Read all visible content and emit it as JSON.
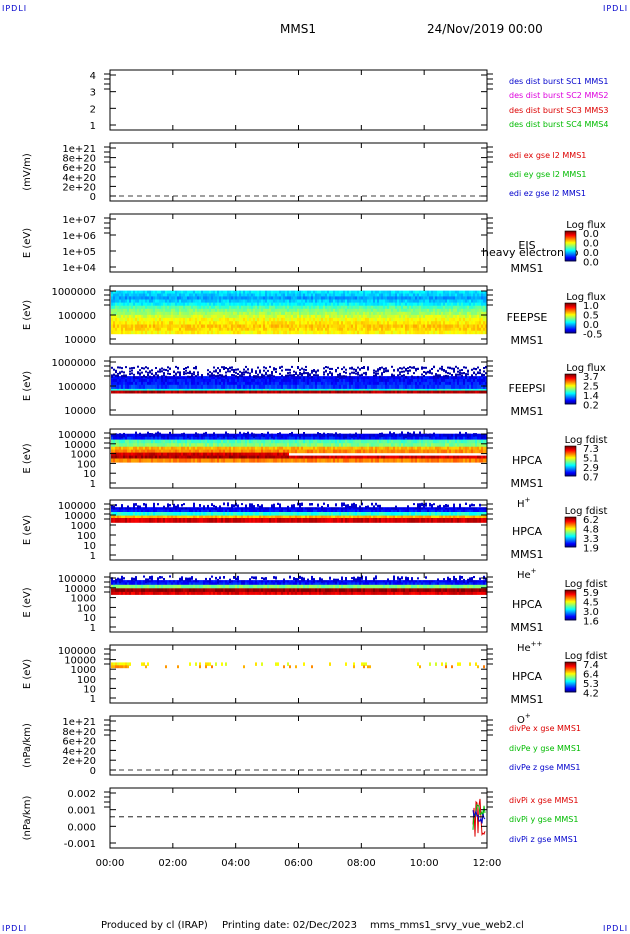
{
  "header": {
    "corner_label_tl": "IPDLI",
    "corner_label_tr": "IPDLI",
    "corner_label_bl": "IPDLI",
    "corner_label_br": "IPDLI",
    "spacecraft": "MMS1",
    "date": "24/Nov/2019 00:00"
  },
  "footer": {
    "produced_by": "Produced by cl (IRAP)",
    "printing_date": "Printing date: 02/Dec/2023",
    "script_name": "mms_mms1_srvy_vue_web2.cl"
  },
  "colors": {
    "blue": "#0000cc",
    "magenta": "#dd00dd",
    "red": "#dd0000",
    "green": "#00bb00"
  },
  "chart_data": {
    "type": "heatmap",
    "x_tick_labels": [
      "00:00",
      "02:00",
      "04:00",
      "06:00",
      "08:00",
      "10:00",
      "12:00"
    ],
    "panels": [
      {
        "id": "dist",
        "ylabel": "",
        "yticks": [
          "4",
          "3",
          "2",
          "1"
        ],
        "legend": [
          {
            "text": "des dist burst SC1 MMS1",
            "color": "#0000cc"
          },
          {
            "text": "des dist burst SC2 MMS2",
            "color": "#dd00dd"
          },
          {
            "text": "des dist burst SC3 MMS3",
            "color": "#dd0000"
          },
          {
            "text": "des dist burst SC4 MMS4",
            "color": "#00bb00"
          }
        ]
      },
      {
        "id": "edi",
        "ylabel": "(mV/m)",
        "yticks": [
          "1e+21",
          "8e+20",
          "6e+20",
          "4e+20",
          "2e+20",
          "0"
        ],
        "legend": [
          {
            "text": "edi ex gse l2 MMS1",
            "color": "#dd0000"
          },
          {
            "text": "edi ey gse l2 MMS1",
            "color": "#00bb00"
          },
          {
            "text": "edi ez gse l2 MMS1",
            "color": "#0000cc"
          }
        ]
      },
      {
        "id": "eis",
        "ylabel": "E (eV)",
        "yticks": [
          "1e+07",
          "1e+06",
          "1e+05",
          "1e+04"
        ],
        "instrument": "EIS",
        "spacecraft": "MMS1",
        "overlay_text": "heavy electron to",
        "cbar_title": "Log flux",
        "cbar_ticks": [
          "0.0",
          "0.0",
          "0.0",
          "0.0"
        ]
      },
      {
        "id": "feepse",
        "ylabel": "E (eV)",
        "yticks": [
          "1000000",
          "100000",
          "10000"
        ],
        "instrument": "FEEPSE",
        "spacecraft": "MMS1",
        "cbar_title": "Log flux",
        "cbar_ticks": [
          "1.0",
          "0.5",
          "0.0",
          "-0.5"
        ]
      },
      {
        "id": "feepsi",
        "ylabel": "E (eV)",
        "yticks": [
          "1000000",
          "100000",
          "10000"
        ],
        "instrument": "FEEPSI",
        "spacecraft": "MMS1",
        "cbar_title": "Log flux",
        "cbar_ticks": [
          "3.7",
          "2.5",
          "1.4",
          "0.2"
        ]
      },
      {
        "id": "hpca_h",
        "ylabel": "E (eV)",
        "yticks": [
          "100000",
          "10000",
          "1000",
          "100",
          "10",
          "1"
        ],
        "instrument": "HPCA",
        "spacecraft": "MMS1",
        "species": "H",
        "species_sup": "+",
        "cbar_title": "Log fdist",
        "cbar_ticks": [
          "7.3",
          "5.1",
          "2.9",
          "0.7"
        ]
      },
      {
        "id": "hpca_he",
        "ylabel": "E (eV)",
        "yticks": [
          "100000",
          "10000",
          "1000",
          "100",
          "10",
          "1"
        ],
        "instrument": "HPCA",
        "spacecraft": "MMS1",
        "species": "He",
        "species_sup": "+",
        "cbar_title": "Log fdist",
        "cbar_ticks": [
          "6.2",
          "4.8",
          "3.3",
          "1.9"
        ]
      },
      {
        "id": "hpca_hepp",
        "ylabel": "E (eV)",
        "yticks": [
          "100000",
          "10000",
          "1000",
          "100",
          "10",
          "1"
        ],
        "instrument": "HPCA",
        "spacecraft": "MMS1",
        "species": "He",
        "species_sup": "++",
        "cbar_title": "Log fdist",
        "cbar_ticks": [
          "5.9",
          "4.5",
          "3.0",
          "1.6"
        ]
      },
      {
        "id": "hpca_o",
        "ylabel": "E (eV)",
        "yticks": [
          "100000",
          "10000",
          "1000",
          "100",
          "10",
          "1"
        ],
        "instrument": "HPCA",
        "spacecraft": "MMS1",
        "species": "O",
        "species_sup": "+",
        "cbar_title": "Log fdist",
        "cbar_ticks": [
          "7.4",
          "6.4",
          "5.3",
          "4.2"
        ]
      },
      {
        "id": "divpe",
        "ylabel": "(nPa/km)",
        "yticks": [
          "1e+21",
          "8e+20",
          "6e+20",
          "4e+20",
          "2e+20",
          "0"
        ],
        "legend": [
          {
            "text": "divPe x gse MMS1",
            "color": "#dd0000"
          },
          {
            "text": "divPe y gse MMS1",
            "color": "#00bb00"
          },
          {
            "text": "divPe z gse MMS1",
            "color": "#0000cc"
          }
        ]
      },
      {
        "id": "divpi",
        "ylabel": "(nPa/km)",
        "yticks": [
          "0.002",
          "0.001",
          "0.000",
          "-0.001"
        ],
        "legend": [
          {
            "text": "divPi x gse MMS1",
            "color": "#dd0000"
          },
          {
            "text": "divPi y gse MMS1",
            "color": "#00bb00"
          },
          {
            "text": "divPi z gse MMS1",
            "color": "#0000cc"
          }
        ]
      }
    ]
  }
}
